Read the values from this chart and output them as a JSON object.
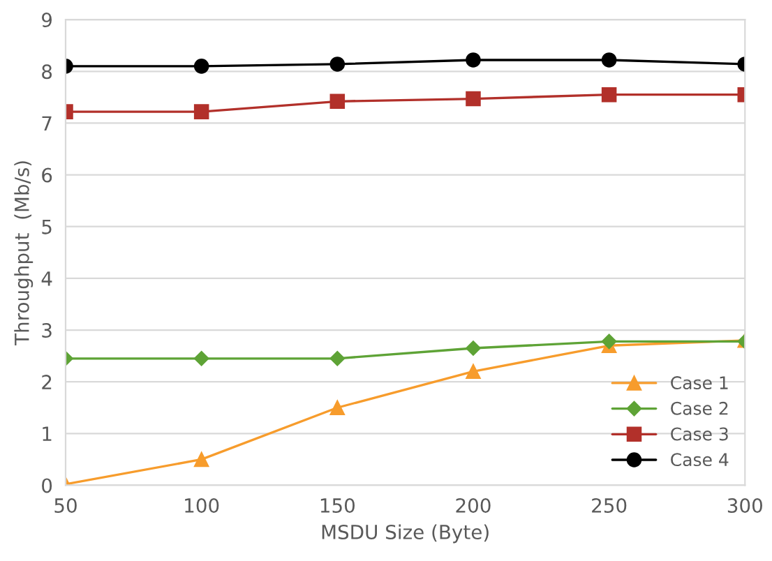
{
  "chart_data": {
    "type": "line",
    "xlabel": "MSDU Size (Byte)",
    "ylabel": "Throughput  (Mb/s)",
    "x": [
      50,
      100,
      150,
      200,
      250,
      300
    ],
    "xlim": [
      50,
      300
    ],
    "xticks": [
      50,
      100,
      150,
      200,
      250,
      300
    ],
    "ylim": [
      0,
      9
    ],
    "yticks": [
      0,
      1,
      2,
      3,
      4,
      5,
      6,
      7,
      8,
      9
    ],
    "grid": "y",
    "legend": "bottom right",
    "series": [
      {
        "name": "Case 1",
        "color": "#f79c2c",
        "marker": "triangle",
        "values": [
          0.02,
          0.5,
          1.5,
          2.2,
          2.7,
          2.8
        ]
      },
      {
        "name": "Case 2",
        "color": "#5ea336",
        "marker": "diamond",
        "values": [
          2.45,
          2.45,
          2.45,
          2.65,
          2.78,
          2.78
        ]
      },
      {
        "name": "Case 3",
        "color": "#b2302a",
        "marker": "square",
        "values": [
          7.22,
          7.22,
          7.42,
          7.47,
          7.55,
          7.55
        ]
      },
      {
        "name": "Case 4",
        "color": "#000000",
        "marker": "circle",
        "values": [
          8.1,
          8.1,
          8.14,
          8.22,
          8.22,
          8.14
        ]
      }
    ]
  }
}
